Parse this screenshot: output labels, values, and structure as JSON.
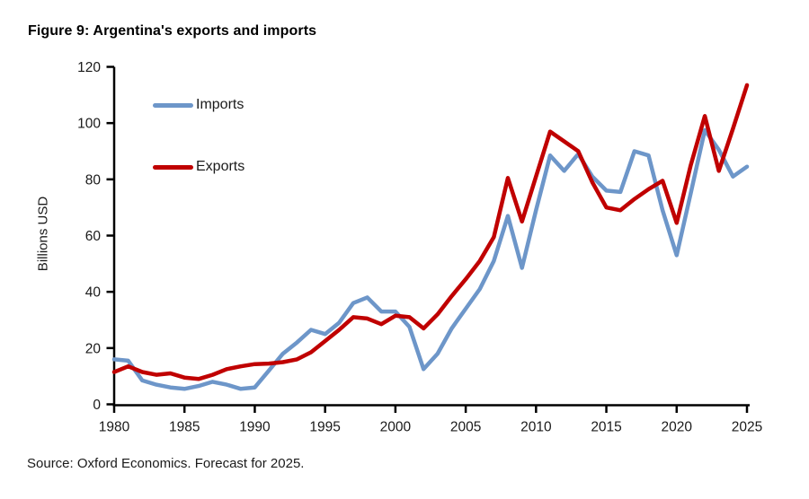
{
  "figure": {
    "title": "Figure 9: Argentina's exports and imports",
    "source_note": "Source: Oxford Economics. Forecast for 2025."
  },
  "legend": {
    "imports_label": "Imports",
    "exports_label": "Exports"
  },
  "colors": {
    "imports": "#6D96C9",
    "exports": "#C00000",
    "axis": "#000000",
    "text": "#1a1a1a"
  },
  "chart_data": {
    "type": "line",
    "title": "Figure 9: Argentina's exports and imports",
    "xlabel": "",
    "ylabel": "Billions USD",
    "xlim": [
      1980,
      2025
    ],
    "ylim": [
      0,
      120
    ],
    "x_ticks": [
      1980,
      1985,
      1990,
      1995,
      2000,
      2005,
      2010,
      2015,
      2020,
      2025
    ],
    "y_ticks": [
      0,
      20,
      40,
      60,
      80,
      100,
      120
    ],
    "grid": false,
    "legend_position": "upper-left-inside",
    "x": [
      1980,
      1981,
      1982,
      1983,
      1984,
      1985,
      1986,
      1987,
      1988,
      1989,
      1990,
      1991,
      1992,
      1993,
      1994,
      1995,
      1996,
      1997,
      1998,
      1999,
      2000,
      2001,
      2002,
      2003,
      2004,
      2005,
      2006,
      2007,
      2008,
      2009,
      2010,
      2011,
      2012,
      2013,
      2014,
      2015,
      2016,
      2017,
      2018,
      2019,
      2020,
      2021,
      2022,
      2023,
      2024,
      2025
    ],
    "series": [
      {
        "name": "Imports",
        "color": "#6D96C9",
        "values": [
          16,
          15.5,
          8.5,
          7,
          6,
          5.5,
          6.5,
          8,
          7,
          5.5,
          6,
          12,
          18,
          22,
          26.5,
          25,
          29,
          36,
          38,
          33,
          33,
          27.5,
          12.5,
          18,
          27,
          34,
          41,
          51,
          67,
          48.5,
          69,
          88.5,
          83,
          89,
          81,
          76,
          75.5,
          90,
          88.5,
          69,
          53,
          75,
          97.5,
          90.5,
          81,
          84.5
        ]
      },
      {
        "name": "Exports",
        "color": "#C00000",
        "values": [
          11.5,
          13.5,
          11.5,
          10.5,
          11,
          9.5,
          9,
          10.5,
          12.5,
          13.5,
          14.3,
          14.5,
          15,
          16,
          18.5,
          22.5,
          26.5,
          31,
          30.5,
          28.5,
          31.5,
          31,
          27,
          32,
          38.5,
          44.5,
          51,
          59.5,
          80.5,
          65,
          81,
          97,
          93.5,
          90,
          79,
          70,
          69,
          73,
          76.5,
          79.5,
          64.5,
          85,
          102.5,
          83,
          98,
          113.5
        ]
      }
    ]
  }
}
